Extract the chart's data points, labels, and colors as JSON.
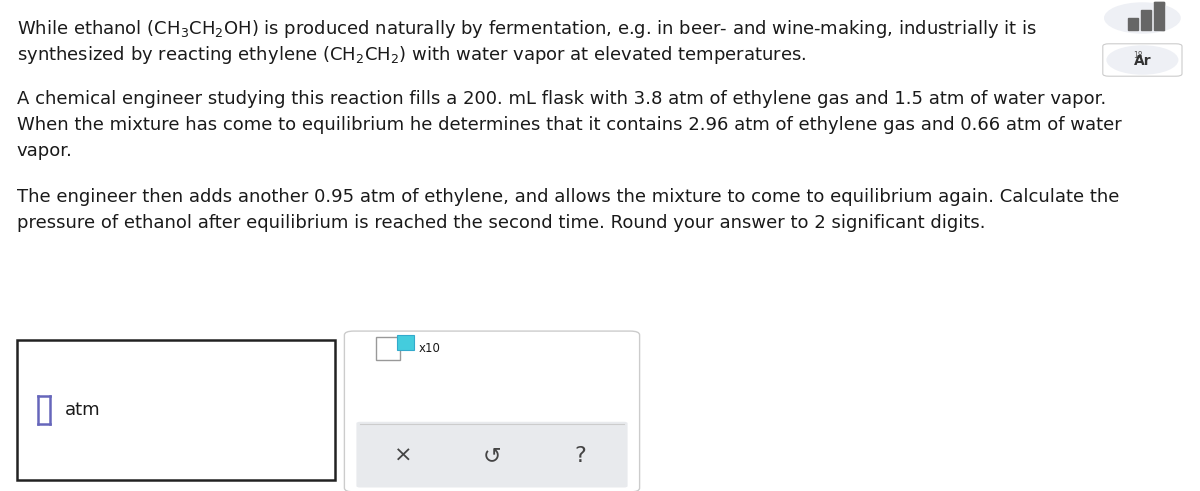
{
  "background_color": "#ffffff",
  "text_color": "#1a1a1a",
  "font_size_main": 13.0,
  "line1a": "While ethanol ",
  "line1b": "(CH",
  "line1b_sub1": "3",
  "line1c": "CH",
  "line1c_sub2": "2",
  "line1d": "OH)",
  "line1e": " is produced naturally by fermentation, e.g. in beer- and wine-making, industrially it is",
  "line2a": "synthesized by reacting ethylene ",
  "line2b": "(CH",
  "line2b_sub": "2",
  "line2c": "CH",
  "line2c_sub": "2",
  "line2d": ")",
  "line2e": " with water vapor at elevated temperatures.",
  "line3": "A chemical engineer studying this reaction fills a 200. mL flask with 3.8 atm of ethylene gas and 1.5 atm of water vapor.",
  "line4": "When the mixture has come to equilibrium he determines that it contains 2.96 atm of ethylene gas and 0.66 atm of water",
  "line5": "vapor.",
  "line6": "The engineer then adds another 0.95 atm of ethylene, and allows the mixture to come to equilibrium again. Calculate the",
  "line7": "pressure of ethanol after equilibrium is reached the second time. Round your answer to 2 significant digits.",
  "answer_label": "atm",
  "cursor_color": "#6666bb",
  "box1_edge_color": "#333333",
  "box2_edge_color": "#cccccc",
  "bar_color_dark": "#555555",
  "bar_color_light": "#aaaaaa",
  "ar_bg": "#eef0f4",
  "ar_text": "#333333",
  "cyan_color": "#44ccdd",
  "bottom_bg": "#e8eaed",
  "bottom_symbols": [
    "X",
    "ș",
    "?"
  ],
  "x10_text": "x10"
}
